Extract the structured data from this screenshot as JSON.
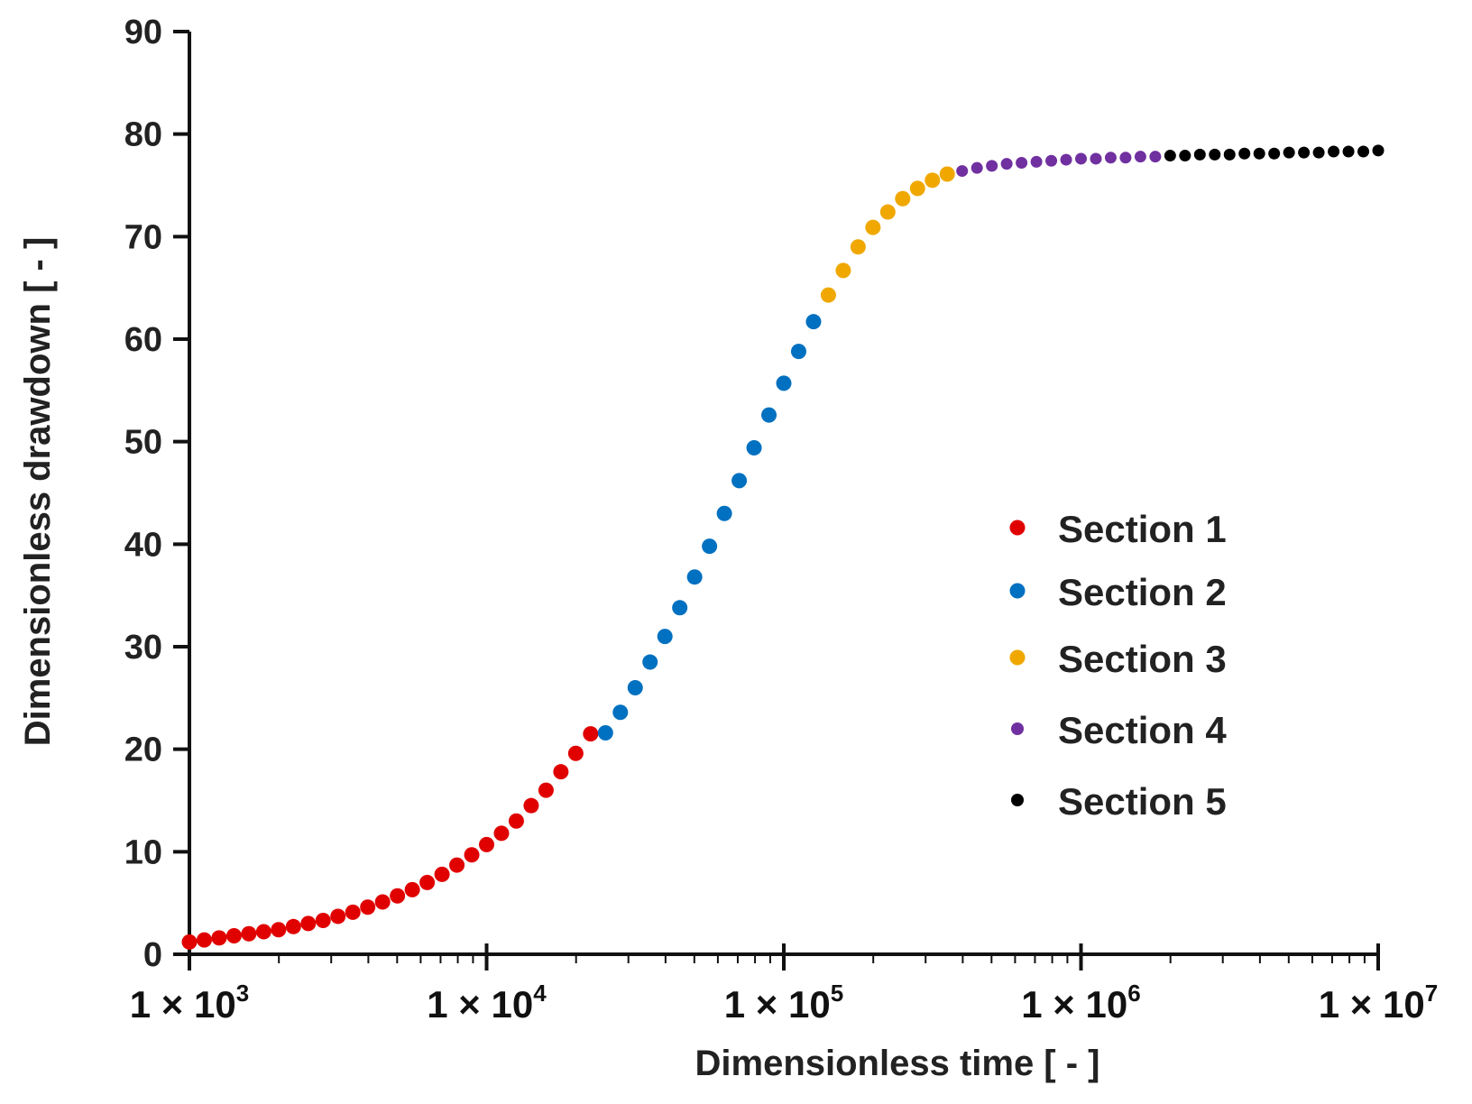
{
  "chart_data": {
    "type": "scatter",
    "title": "",
    "xlabel": "Dimensionless time [ - ]",
    "ylabel": "Dimensionless drawdown [ - ]",
    "xscale": "log",
    "xlim": [
      1000,
      10000000
    ],
    "ylim": [
      0,
      90
    ],
    "yticks": [
      "0",
      "10",
      "20",
      "30",
      "40",
      "50",
      "60",
      "70",
      "80",
      "90"
    ],
    "xticks": [
      {
        "base": "1 × 10",
        "exp": "3"
      },
      {
        "base": "1 × 10",
        "exp": "4"
      },
      {
        "base": "1 × 10",
        "exp": "5"
      },
      {
        "base": "1 × 10",
        "exp": "6"
      },
      {
        "base": "1 × 10",
        "exp": "7"
      }
    ],
    "grid": false,
    "legend_position": "center-right",
    "series": [
      {
        "name": "Section 1",
        "color": "#e00000",
        "x": [
          1000,
          1122,
          1259,
          1413,
          1585,
          1778,
          1995,
          2239,
          2512,
          2818,
          3162,
          3548,
          3981,
          4467,
          5012,
          5623,
          6310,
          7079,
          7943,
          8913,
          10000,
          11220,
          12589,
          14125,
          15849,
          17783,
          19953,
          22387
        ],
        "y": [
          1.2,
          1.4,
          1.6,
          1.8,
          2.0,
          2.2,
          2.4,
          2.7,
          3.0,
          3.3,
          3.7,
          4.1,
          4.6,
          5.1,
          5.7,
          6.3,
          7.0,
          7.8,
          8.7,
          9.7,
          10.7,
          11.8,
          13.0,
          14.5,
          16.0,
          17.8,
          19.6,
          21.5
        ]
      },
      {
        "name": "Section 2",
        "color": "#0070c0",
        "x": [
          25119,
          28184,
          31623,
          35481,
          39811,
          44668,
          50119,
          56234,
          63096,
          70795,
          79433,
          89125,
          100000,
          112202,
          125893
        ],
        "y": [
          21.6,
          23.6,
          26.0,
          28.5,
          31.0,
          33.8,
          36.8,
          39.8,
          43.0,
          46.2,
          49.4,
          52.6,
          55.7,
          58.8,
          61.7
        ]
      },
      {
        "name": "Section 3",
        "color": "#f0a800",
        "x": [
          141254,
          158489,
          177828,
          199526,
          223872,
          251189,
          281838,
          316228,
          354813
        ],
        "y": [
          64.3,
          66.7,
          69.0,
          70.9,
          72.4,
          73.7,
          74.7,
          75.5,
          76.1
        ]
      },
      {
        "name": "Section 4",
        "color": "#7030a0",
        "x": [
          398107,
          446684,
          501187,
          562341,
          630957,
          707946,
          794328,
          891251,
          1000000,
          1122018,
          1258925,
          1412538,
          1584893,
          1778279
        ],
        "y": [
          76.4,
          76.7,
          76.9,
          77.1,
          77.2,
          77.3,
          77.4,
          77.5,
          77.6,
          77.6,
          77.7,
          77.7,
          77.8,
          77.8
        ]
      },
      {
        "name": "Section 5",
        "color": "#000000",
        "x": [
          1995262,
          2238721,
          2511886,
          2818383,
          3162278,
          3548134,
          3981072,
          4466836,
          5011872,
          5623413,
          6309573,
          7079458,
          7943282,
          8912509,
          10000000
        ],
        "y": [
          77.9,
          77.9,
          78.0,
          78.0,
          78.0,
          78.1,
          78.1,
          78.1,
          78.2,
          78.2,
          78.2,
          78.3,
          78.3,
          78.3,
          78.4
        ]
      }
    ]
  }
}
